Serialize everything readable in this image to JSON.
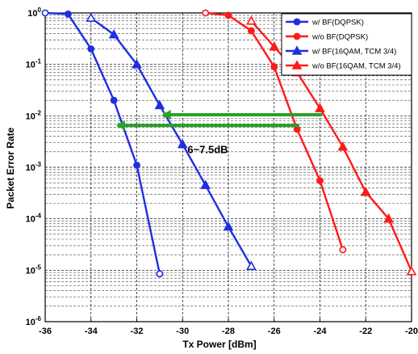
{
  "chart_data": {
    "type": "line",
    "title": "",
    "xlabel": "Tx Power [dBm]",
    "ylabel": "Packet Error Rate",
    "xlim": [
      -36,
      -20
    ],
    "ylim": [
      1e-06,
      1
    ],
    "yscale": "log",
    "grid": true,
    "legend_position": "top-right",
    "x_ticks": [
      -36,
      -34,
      -32,
      -30,
      -28,
      -26,
      -24,
      -22,
      -20
    ],
    "y_ticks": [
      1e-06,
      1e-05,
      0.0001,
      0.001,
      0.01,
      0.1,
      1
    ],
    "x_tick_labels": [
      "-36",
      "-34",
      "-32",
      "-30",
      "-28",
      "-26",
      "-24",
      "-22",
      "-20"
    ],
    "y_tick_labels": [
      {
        "base": "10",
        "exp": "-6"
      },
      {
        "base": "10",
        "exp": "-5"
      },
      {
        "base": "10",
        "exp": "-4"
      },
      {
        "base": "10",
        "exp": "-3"
      },
      {
        "base": "10",
        "exp": "-2"
      },
      {
        "base": "10",
        "exp": "-1"
      },
      {
        "base": "10",
        "exp": "0"
      }
    ],
    "series": [
      {
        "name": "w/ BF(DQPSK)",
        "color": "#1f2fe0",
        "marker": "circle",
        "x": [
          -36,
          -35,
          -34,
          -33,
          -32,
          -31
        ],
        "y": [
          1,
          0.95,
          0.2,
          0.02,
          0.0011,
          8.5e-06
        ]
      },
      {
        "name": "w/o BF(DQPSK)",
        "color": "#ff1a1a",
        "marker": "circle",
        "x": [
          -29,
          -28,
          -27,
          -26,
          -25,
          -24,
          -23
        ],
        "y": [
          1,
          0.9,
          0.45,
          0.09,
          0.0055,
          0.00055,
          2.5e-05
        ]
      },
      {
        "name": "w/ BF(16QAM, TCM 3/4)",
        "color": "#1f2fe0",
        "marker": "triangle",
        "x": [
          -34,
          -33,
          -32,
          -31,
          -30,
          -29,
          -28,
          -27
        ],
        "y": [
          0.8,
          0.38,
          0.1,
          0.016,
          0.0028,
          0.00045,
          7e-05,
          1.2e-05
        ]
      },
      {
        "name": "w/o BF(16QAM, TCM 3/4)",
        "color": "#ff1a1a",
        "marker": "triangle",
        "x": [
          -27,
          -26,
          -25,
          -24,
          -23,
          -22,
          -21,
          -20
        ],
        "y": [
          0.7,
          0.22,
          0.07,
          0.014,
          0.0025,
          0.00033,
          0.0001,
          9.5e-06
        ]
      }
    ],
    "annotations": [
      {
        "type": "arrow",
        "color": "#2aa02a",
        "from": [
          -23.9,
          0.0105
        ],
        "to": [
          -30.9,
          0.0105
        ]
      },
      {
        "type": "arrow",
        "color": "#2aa02a",
        "from": [
          -24.9,
          0.0065
        ],
        "to": [
          -32.9,
          0.0065
        ]
      },
      {
        "type": "text",
        "text": "6~7.5dB",
        "x": -28.9,
        "y": 0.0019
      }
    ]
  }
}
